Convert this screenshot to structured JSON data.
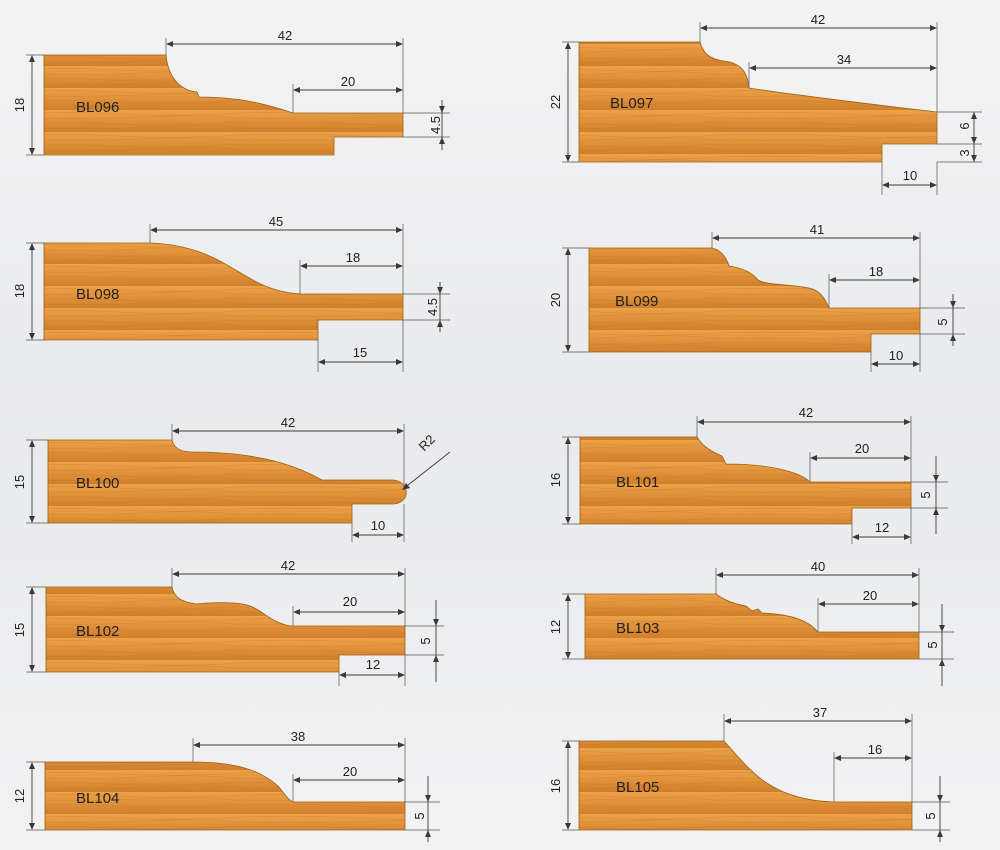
{
  "wood_colors": {
    "light": "#eba249",
    "mid": "#dc8c34",
    "dark": "#c9782a",
    "grain": "#b8681f"
  },
  "dimension_color": "#3a3a3a",
  "profiles": [
    {
      "code": "BL096",
      "dims": [
        "18",
        "42",
        "20",
        "4.5"
      ]
    },
    {
      "code": "BL097",
      "dims": [
        "22",
        "42",
        "34",
        "6",
        "3",
        "10"
      ]
    },
    {
      "code": "BL098",
      "dims": [
        "18",
        "45",
        "18",
        "4.5",
        "15"
      ]
    },
    {
      "code": "BL099",
      "dims": [
        "20",
        "41",
        "18",
        "5",
        "10"
      ]
    },
    {
      "code": "BL100",
      "dims": [
        "15",
        "42",
        "R2",
        "10"
      ]
    },
    {
      "code": "BL101",
      "dims": [
        "16",
        "42",
        "20",
        "5",
        "12"
      ]
    },
    {
      "code": "BL102",
      "dims": [
        "15",
        "42",
        "20",
        "5",
        "12"
      ]
    },
    {
      "code": "BL103",
      "dims": [
        "12",
        "40",
        "20",
        "5"
      ]
    },
    {
      "code": "BL104",
      "dims": [
        "12",
        "38",
        "20",
        "5"
      ]
    },
    {
      "code": "BL105",
      "dims": [
        "16",
        "37",
        "16",
        "5"
      ]
    }
  ]
}
